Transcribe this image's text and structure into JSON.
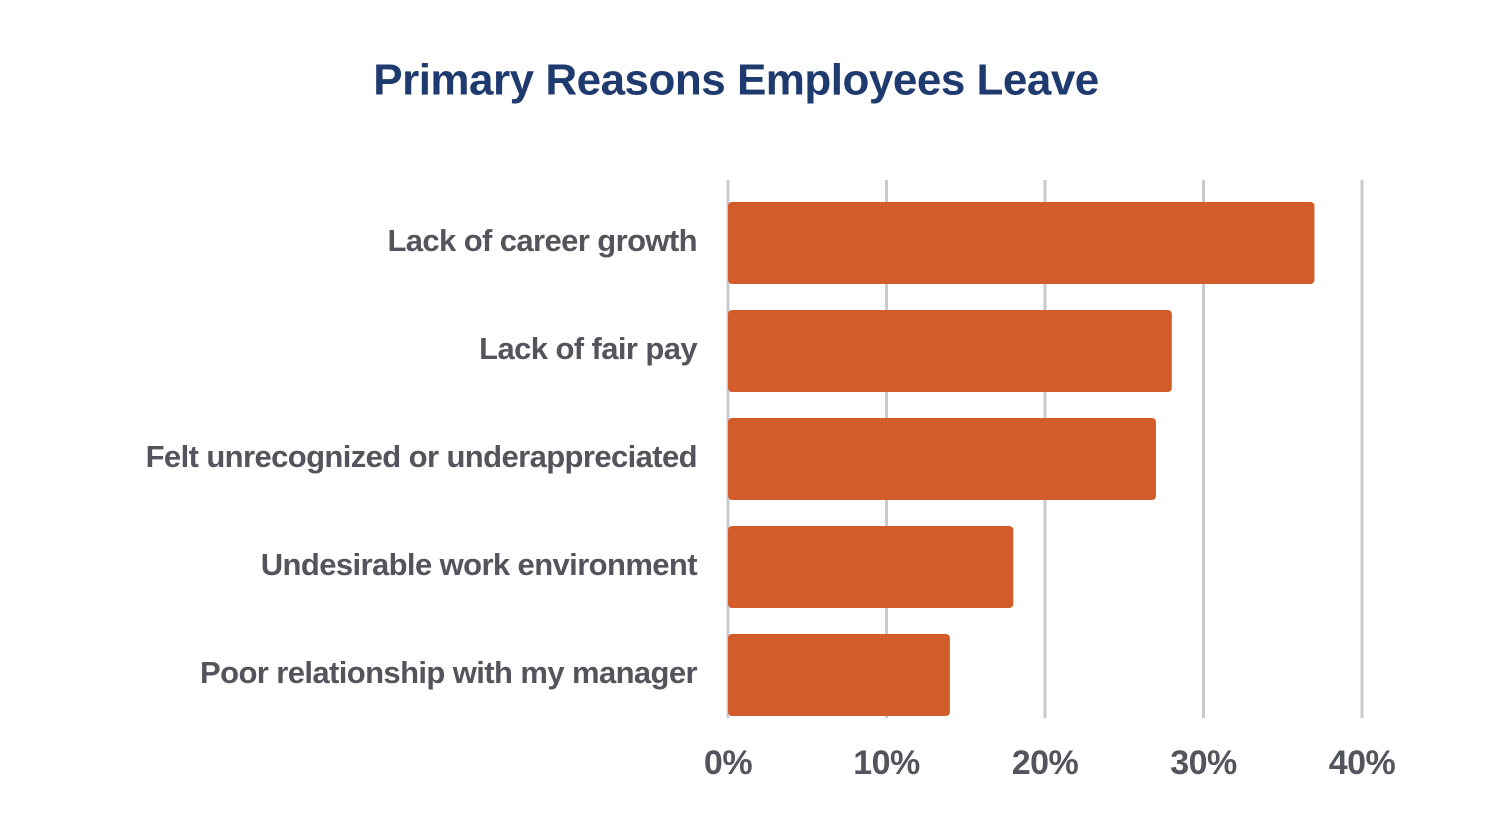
{
  "chart_data": {
    "type": "bar",
    "orientation": "horizontal",
    "title": "Primary Reasons Employees Leave",
    "categories": [
      "Lack of career growth",
      "Lack of fair pay",
      "Felt unrecognized or underappreciated",
      "Undesirable work environment",
      "Poor relationship with my manager"
    ],
    "values": [
      37,
      28,
      27,
      18,
      14
    ],
    "color": "#d35c2b",
    "xlim": [
      0,
      40
    ],
    "xticks": [
      {
        "value": 0,
        "label": "0%"
      },
      {
        "value": 10,
        "label": "10%"
      },
      {
        "value": 20,
        "label": "20%"
      },
      {
        "value": 30,
        "label": "30%"
      },
      {
        "value": 40,
        "label": "40%"
      }
    ],
    "grid": true
  }
}
